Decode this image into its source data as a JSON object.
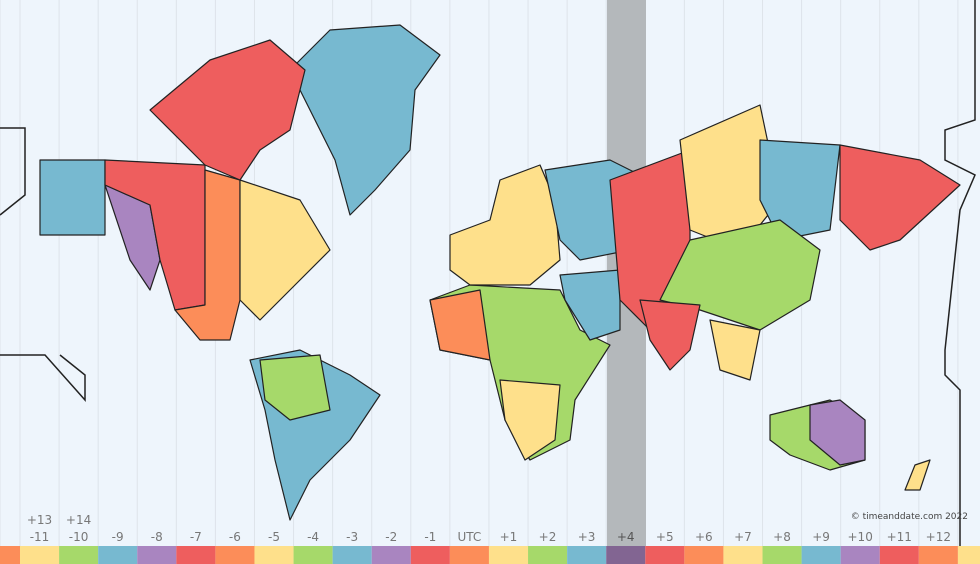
{
  "map": {
    "copyright": "© timeanddate.com 2022",
    "highlighted_zone": "+4",
    "highlight_color": "#b4b8bb",
    "ocean_color": "#eef5fc",
    "zones": [
      {
        "label": "",
        "color": "#fc8d59"
      },
      {
        "label": "-11",
        "upper": "+13",
        "color": "#fee08b"
      },
      {
        "label": "-10",
        "upper": "+14",
        "color": "#a6d96a"
      },
      {
        "label": "-9",
        "color": "#77b9d0"
      },
      {
        "label": "-8",
        "color": "#a985c0"
      },
      {
        "label": "-7",
        "color": "#ee5e5e"
      },
      {
        "label": "-6",
        "color": "#fc8d59"
      },
      {
        "label": "-5",
        "color": "#fee08b"
      },
      {
        "label": "-4",
        "color": "#a6d96a"
      },
      {
        "label": "-3",
        "color": "#77b9d0"
      },
      {
        "label": "-2",
        "color": "#a985c0"
      },
      {
        "label": "-1",
        "color": "#ee5e5e"
      },
      {
        "label": "UTC",
        "color": "#fc8d59"
      },
      {
        "label": "+1",
        "color": "#fee08b"
      },
      {
        "label": "+2",
        "color": "#a6d96a"
      },
      {
        "label": "+3",
        "color": "#77b9d0"
      },
      {
        "label": "+4",
        "color": "#826592"
      },
      {
        "label": "+5",
        "color": "#ee5e5e"
      },
      {
        "label": "+6",
        "color": "#fc8d59"
      },
      {
        "label": "+7",
        "color": "#fee08b"
      },
      {
        "label": "+8",
        "color": "#a6d96a"
      },
      {
        "label": "+9",
        "color": "#77b9d0"
      },
      {
        "label": "+10",
        "color": "#a985c0"
      },
      {
        "label": "+11",
        "color": "#ee5e5e"
      },
      {
        "label": "+12",
        "color": "#fc8d59"
      },
      {
        "label": "",
        "color": "#fee08b"
      }
    ]
  }
}
